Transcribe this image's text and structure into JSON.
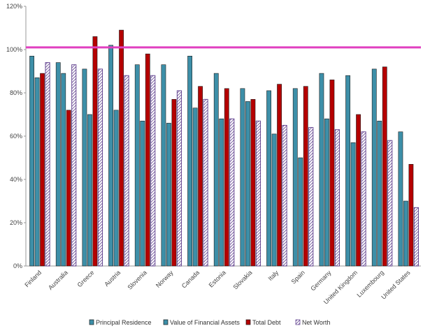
{
  "chart_data": {
    "type": "bar",
    "title": "",
    "xlabel": "",
    "ylabel": "",
    "ylim": [
      0,
      120
    ],
    "yticks": [
      0,
      20,
      40,
      60,
      80,
      100,
      120
    ],
    "ytick_labels": [
      "0%",
      "20%",
      "40%",
      "60%",
      "80%",
      "100%",
      "120%"
    ],
    "grid": false,
    "legend_position": "bottom",
    "reference_line": {
      "value": 101,
      "color": "#e040c0"
    },
    "categories": [
      "Finland",
      "Australia",
      "Greece",
      "Austria",
      "Slovenia",
      "Norway",
      "Canada",
      "Estonia",
      "Slovakia",
      "Italy",
      "Spain",
      "Germany",
      "United Kingdom",
      "Luxembourg",
      "United States"
    ],
    "series": [
      {
        "name": "Principal Residence",
        "color": "#3d8fa8",
        "pattern": "solid",
        "values": [
          97,
          94,
          91,
          102,
          93,
          93,
          97,
          89,
          82,
          81,
          82,
          89,
          88,
          91,
          62
        ]
      },
      {
        "name": "Value of Financial Assets",
        "color": "#3d8fa8",
        "pattern": "solid",
        "values": [
          87,
          89,
          70,
          72,
          67,
          66,
          73,
          68,
          76,
          61,
          50,
          68,
          57,
          67,
          30
        ]
      },
      {
        "name": "Total Debt",
        "color": "#b50000",
        "pattern": "solid",
        "values": [
          89,
          72,
          106,
          109,
          98,
          77,
          83,
          82,
          77,
          84,
          83,
          86,
          70,
          92,
          47
        ]
      },
      {
        "name": "Net Worth",
        "color": "#5b3a8a",
        "pattern": "hatched",
        "values": [
          94,
          93,
          91,
          88,
          88,
          81,
          77,
          68,
          67,
          65,
          64,
          63,
          62,
          58,
          27
        ]
      }
    ]
  }
}
